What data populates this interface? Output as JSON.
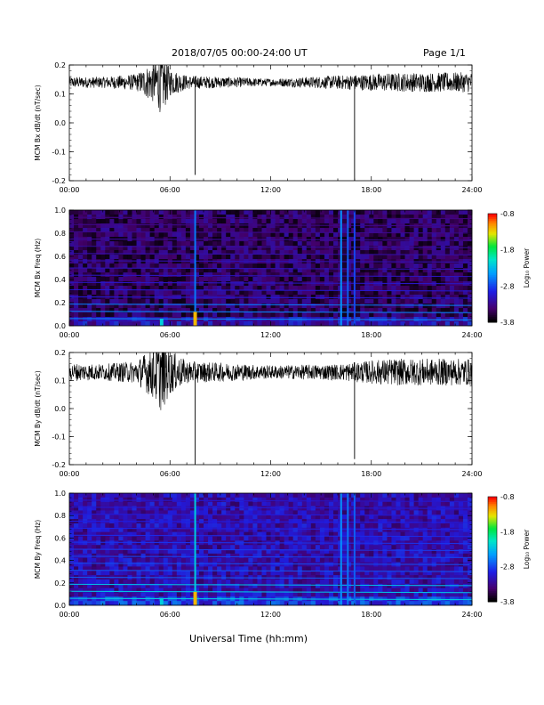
{
  "header": {
    "title": "2018/07/05  00:00-24:00 UT",
    "page": "Page 1/1"
  },
  "xlabel": "Universal Time (hh:mm)",
  "colorbar": {
    "label": "Log₁₀ Power",
    "ticks": [
      "-0.8",
      "-1.8",
      "-2.8",
      "-3.8"
    ]
  },
  "chart_data": [
    {
      "type": "line",
      "ylabel": "MCM Bx dB/dt (nT/sec)",
      "xlim": [
        0,
        24
      ],
      "ylim": [
        -0.2,
        0.2
      ],
      "xticks": [
        "00:00",
        "06:00",
        "12:00",
        "18:00",
        "24:00"
      ],
      "yticks": [
        "0.2",
        "0.1",
        "0.0",
        "-0.1",
        "-0.2"
      ],
      "baseline": 0.14,
      "noise_band": [
        {
          "t": 0,
          "amp": 0.012
        },
        {
          "t": 2,
          "amp": 0.012
        },
        {
          "t": 4,
          "amp": 0.018
        },
        {
          "t": 5,
          "amp": 0.045
        },
        {
          "t": 5.5,
          "amp": 0.07
        },
        {
          "t": 6,
          "amp": 0.03
        },
        {
          "t": 7,
          "amp": 0.015
        },
        {
          "t": 12,
          "amp": 0.008
        },
        {
          "t": 16,
          "amp": 0.015
        },
        {
          "t": 19,
          "amp": 0.02
        },
        {
          "t": 24,
          "amp": 0.022
        }
      ],
      "spikes": [
        {
          "t": 7.5,
          "y": -0.18
        },
        {
          "t": 17.0,
          "y": -0.2
        }
      ]
    },
    {
      "type": "heatmap",
      "ylabel": "MCM Bx Freq (Hz)",
      "xlim": [
        0,
        24
      ],
      "ylim": [
        0,
        1.0
      ],
      "xticks": [
        "00:00",
        "06:00",
        "12:00",
        "18:00",
        "24:00"
      ],
      "yticks": [
        "1.0",
        "0.8",
        "0.6",
        "0.4",
        "0.2",
        "0.0"
      ],
      "zlabel": "Log10 Power",
      "zlim": [
        -3.8,
        -0.8
      ],
      "background_level": -3.5,
      "harmonic_spacing_hz": 0.0625,
      "harmonic_level": -2.9,
      "vertical_features": [
        {
          "t": 7.5,
          "level": -2.6
        },
        {
          "t": 16.2,
          "level": -2.5
        },
        {
          "t": 16.6,
          "level": -2.7
        },
        {
          "t": 17.0,
          "level": -2.8
        }
      ]
    },
    {
      "type": "line",
      "ylabel": "MCM By dB/dt (nT/sec)",
      "xlim": [
        0,
        24
      ],
      "ylim": [
        -0.2,
        0.2
      ],
      "xticks": [
        "00:00",
        "06:00",
        "12:00",
        "18:00",
        "24:00"
      ],
      "yticks": [
        "0.2",
        "0.1",
        "0.0",
        "-0.1",
        "-0.2"
      ],
      "baseline": 0.13,
      "noise_band": [
        {
          "t": 0,
          "amp": 0.02
        },
        {
          "t": 2,
          "amp": 0.018
        },
        {
          "t": 4,
          "amp": 0.025
        },
        {
          "t": 5,
          "amp": 0.06
        },
        {
          "t": 5.5,
          "amp": 0.09
        },
        {
          "t": 6,
          "amp": 0.05
        },
        {
          "t": 7,
          "amp": 0.025
        },
        {
          "t": 12,
          "amp": 0.015
        },
        {
          "t": 16,
          "amp": 0.018
        },
        {
          "t": 19,
          "amp": 0.03
        },
        {
          "t": 24,
          "amp": 0.03
        }
      ],
      "spikes": [
        {
          "t": 7.5,
          "y": -0.2
        },
        {
          "t": 17.0,
          "y": -0.18
        }
      ]
    },
    {
      "type": "heatmap",
      "ylabel": "MCM By Freq (Hz)",
      "xlim": [
        0,
        24
      ],
      "ylim": [
        0,
        1.0
      ],
      "xticks": [
        "00:00",
        "06:00",
        "12:00",
        "18:00",
        "24:00"
      ],
      "yticks": [
        "1.0",
        "0.8",
        "0.6",
        "0.4",
        "0.2",
        "0.0"
      ],
      "zlabel": "Log10 Power",
      "zlim": [
        -3.8,
        -0.8
      ],
      "background_level": -3.2,
      "harmonic_spacing_hz": 0.0625,
      "harmonic_level": -2.6,
      "vertical_features": [
        {
          "t": 7.5,
          "level": -2.2
        },
        {
          "t": 16.2,
          "level": -2.5
        },
        {
          "t": 16.6,
          "level": -2.6
        },
        {
          "t": 17.0,
          "level": -2.7
        }
      ]
    }
  ]
}
